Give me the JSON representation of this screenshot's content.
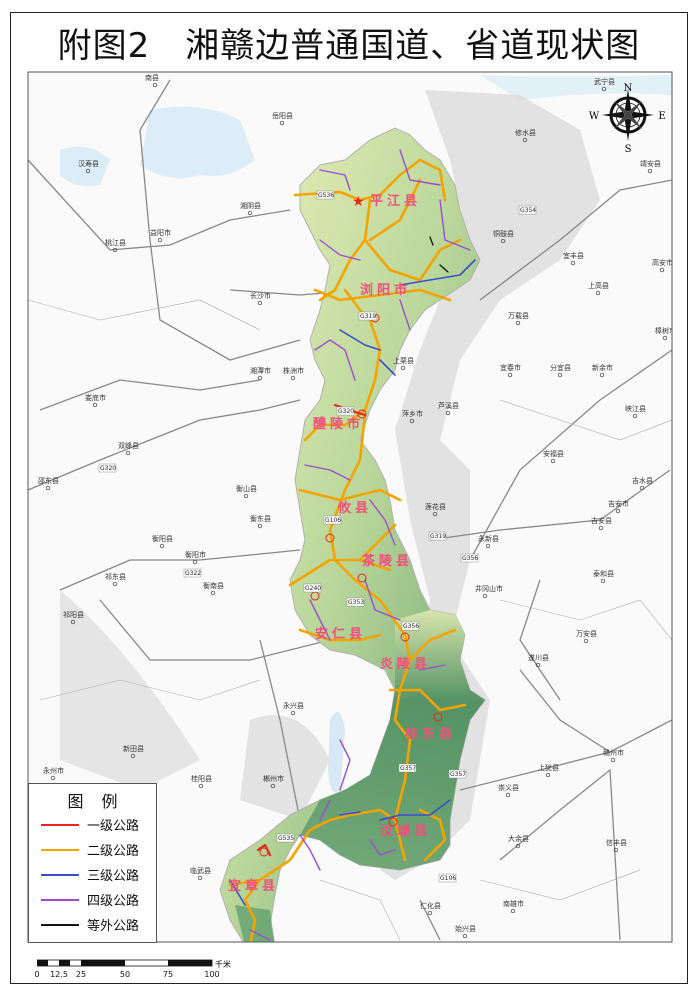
{
  "title": "附图2　湘赣边普通国道、省道现状图",
  "compass": {
    "n": "N",
    "s": "S",
    "e": "E",
    "w": "W"
  },
  "legend": {
    "title": "图例",
    "items": [
      {
        "label": "一级公路",
        "color": "#e8261c"
      },
      {
        "label": "二级公路",
        "color": "#f5a300"
      },
      {
        "label": "三级公路",
        "color": "#3c4fc8"
      },
      {
        "label": "四级公路",
        "color": "#9b4fd0"
      },
      {
        "label": "等外公路",
        "color": "#111111"
      }
    ]
  },
  "scale": {
    "unit": "千米",
    "labels": [
      "0",
      "12.5",
      "25",
      "50",
      "75",
      "100"
    ]
  },
  "counties": [
    "平江县",
    "浏阳市",
    "醴陵市",
    "攸县",
    "茶陵县",
    "安仁县",
    "炎陵县",
    "桂东县",
    "汝城县",
    "宜章县"
  ],
  "cities": [
    "南县",
    "岳阳县",
    "汉寿县",
    "湘阴县",
    "益阳市",
    "桃江县",
    "长沙市",
    "湘潭市",
    "株洲市",
    "娄底市",
    "武宁县",
    "修水县",
    "靖安县",
    "铜鼓县",
    "宜丰县",
    "高安市",
    "上高县",
    "万载县",
    "樟树市",
    "上栗县",
    "宜春市",
    "分宜县",
    "新余市",
    "芦溪县",
    "萍乡市",
    "峡江县",
    "双峰县",
    "邵东县",
    "衡山县",
    "衡东县",
    "衡阳县",
    "衡阳市",
    "祁东县",
    "衡南县",
    "祁阳县",
    "永兴县",
    "新田县",
    "永州市",
    "桂阳县",
    "郴州市",
    "临武县",
    "安福县",
    "吉水县",
    "吉安市",
    "吉安县",
    "莲花县",
    "永新县",
    "井冈山市",
    "泰和县",
    "万安县",
    "遂川县",
    "赣州市",
    "上犹县",
    "崇义县",
    "大余县",
    "信丰县",
    "南雄市",
    "始兴县",
    "仁化县"
  ],
  "routes": [
    "G536",
    "G319",
    "G320",
    "G106",
    "G353",
    "G240",
    "G356",
    "G357",
    "G535",
    "G319",
    "G356",
    "G357",
    "G354",
    "G320",
    "G322",
    "G106"
  ],
  "colors": {
    "region_fill": "#e9efb4",
    "mountain": "#3f8a5a",
    "outside_relief": "#d9d9d9",
    "water": "#d8ecf7"
  }
}
